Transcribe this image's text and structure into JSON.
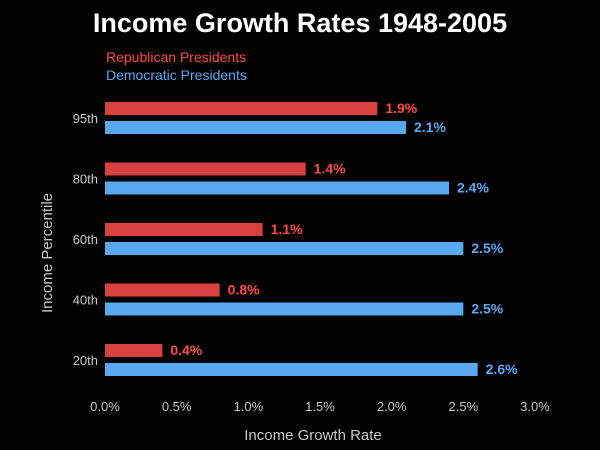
{
  "chart_data": {
    "type": "bar",
    "orientation": "horizontal",
    "title": "Income Growth Rates 1948-2005",
    "xlabel": "Income Growth Rate",
    "ylabel": "Income Percentile",
    "categories": [
      "95th",
      "80th",
      "60th",
      "40th",
      "20th"
    ],
    "series": [
      {
        "name": "Republican Presidents",
        "color": "#d94040",
        "label_color": "#ff4a4a",
        "values": [
          1.9,
          1.4,
          1.1,
          0.8,
          0.4
        ],
        "labels": [
          "1.9%",
          "1.4%",
          "1.1%",
          "0.8%",
          "0.4%"
        ]
      },
      {
        "name": "Democratic Presidents",
        "color": "#5aa8f0",
        "label_color": "#5aa8f0",
        "values": [
          2.1,
          2.4,
          2.5,
          2.5,
          2.6
        ],
        "labels": [
          "2.1%",
          "2.4%",
          "2.5%",
          "2.5%",
          "2.6%"
        ]
      }
    ],
    "xlim": [
      0,
      3.0
    ],
    "xticks": [
      0,
      0.5,
      1.0,
      1.5,
      2.0,
      2.5,
      3.0
    ],
    "xtick_labels": [
      "0.0%",
      "0.5%",
      "1.0%",
      "1.5%",
      "2.0%",
      "2.5%",
      "3.0%"
    ],
    "grid": false,
    "legend_position": "top-left",
    "background": "#000000"
  }
}
